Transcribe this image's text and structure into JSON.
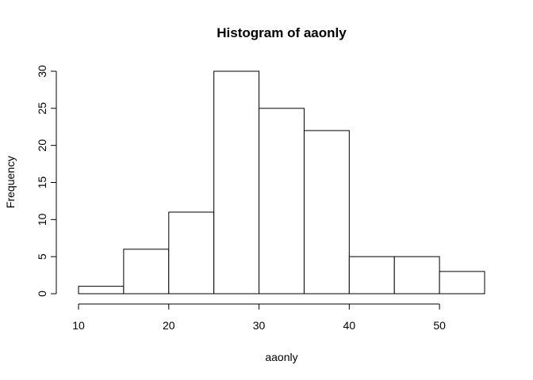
{
  "chart_data": {
    "type": "bar",
    "subtype": "histogram",
    "title": "Histogram of aaonly",
    "xlabel": "aaonly",
    "ylabel": "Frequency",
    "bin_edges": [
      10,
      15,
      20,
      25,
      30,
      35,
      40,
      45,
      50,
      55
    ],
    "categories": [
      "10-15",
      "15-20",
      "20-25",
      "25-30",
      "30-35",
      "35-40",
      "40-45",
      "45-50",
      "50-55"
    ],
    "values": [
      1,
      6,
      11,
      30,
      25,
      22,
      5,
      5,
      3
    ],
    "xlim": [
      10,
      55
    ],
    "ylim": [
      0,
      30
    ],
    "xticks": [
      10,
      20,
      30,
      40,
      50
    ],
    "yticks": [
      0,
      5,
      10,
      15,
      20,
      25,
      30
    ],
    "grid": false,
    "colors": {
      "bar_fill": "#ffffff",
      "bar_stroke": "#000000",
      "background": "#ffffff"
    }
  }
}
